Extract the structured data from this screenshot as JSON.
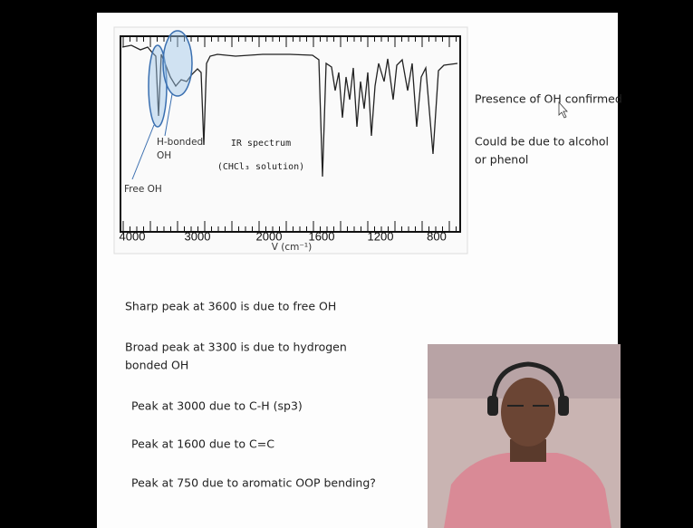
{
  "spectrum": {
    "axis_labels": [
      "4000",
      "3000",
      "2000",
      "1600",
      "1200",
      "800"
    ],
    "axis_title": "V (cm⁻¹)",
    "caption": [
      "IR spectrum",
      "(CHCl₃ solution)"
    ],
    "annotations": [
      "H-bonded",
      "OH",
      "Free OH"
    ]
  },
  "side_notes": [
    "Presence of OH confirmed",
    "Could be due to alcohol",
    "or phenol"
  ],
  "notes": [
    "Sharp peak at 3600 is due to free OH",
    "Broad peak at 3300 is due to hydrogen",
    "bonded OH",
    "Peak at 3000 due to C-H (sp3)",
    "Peak at 1600 due to C=C",
    "Peak at 750 due to aromatic OOP bending?"
  ]
}
